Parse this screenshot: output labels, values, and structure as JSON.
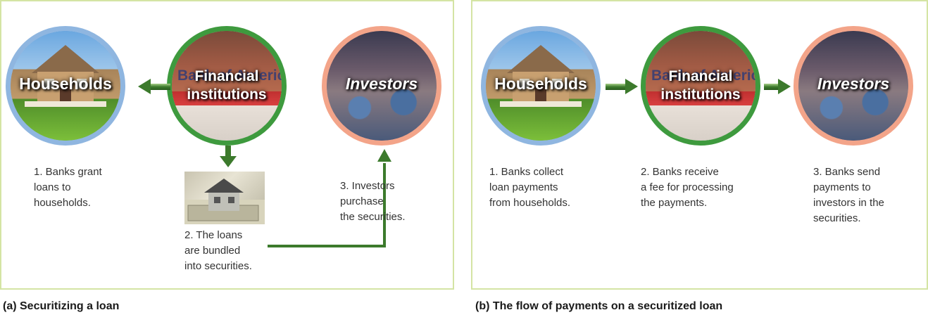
{
  "panel_a": {
    "caption": "(a) Securitizing a loan",
    "households_label": "Households",
    "financial_label": "Financial\ninstitutions",
    "investors_label": "Investors",
    "bank_sign_text": "Bank of America",
    "step1": "1. Banks grant\nloans to\nhouseholds.",
    "step2": "2. The loans\nare bundled\ninto securities.",
    "step3": "3. Investors\npurchase\nthe securities."
  },
  "panel_b": {
    "caption": "(b) The flow of payments on a securitized loan",
    "households_label": "Households",
    "financial_label": "Financial\ninstitutions",
    "investors_label": "Investors",
    "bank_sign_text": "Bank of America",
    "step1": "1. Banks collect\nloan payments\nfrom households.",
    "step2": "2. Banks receive\na fee for processing\nthe payments.",
    "step3": "3. Banks send\npayments to\ninvestors in the\nsecurities."
  },
  "colors": {
    "arrow_green": "#3c7a2c",
    "panel_border": "#d4e4a4"
  }
}
